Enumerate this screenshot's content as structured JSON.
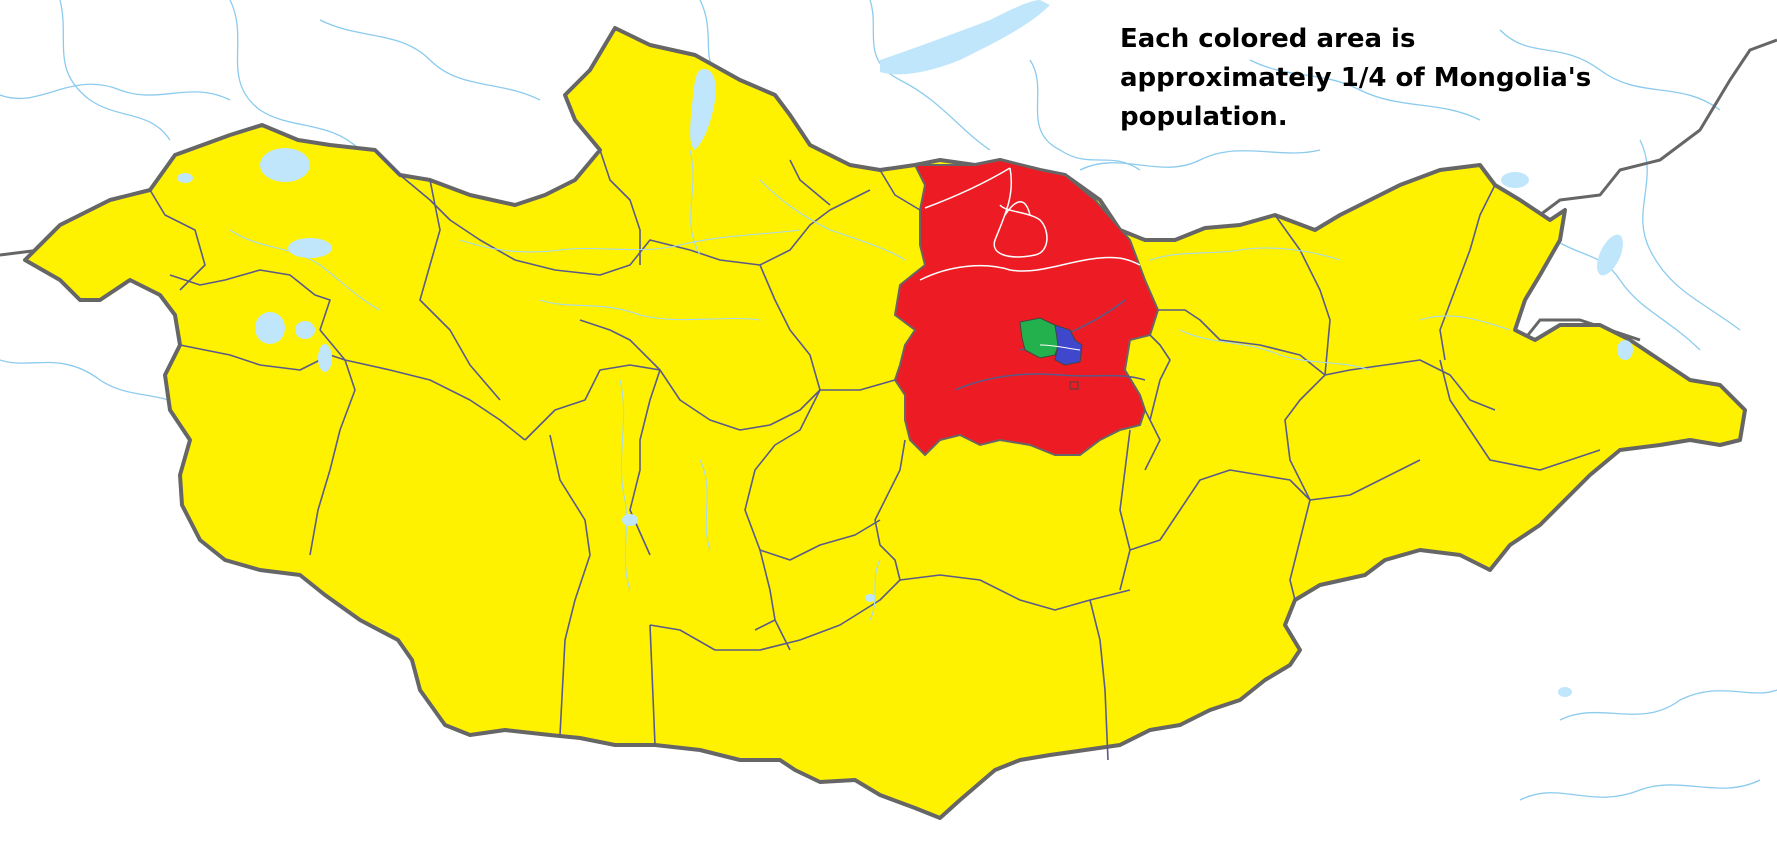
{
  "caption": {
    "lines": [
      "Each colored area is",
      "approximately 1/4 of Mongolia's",
      "population."
    ]
  },
  "population_groups": [
    {
      "name": "yellow-areas",
      "color": "#fff200",
      "share_of_population": 0.25
    },
    {
      "name": "red-areas",
      "color": "#ed1c24",
      "share_of_population": 0.25
    },
    {
      "name": "green-area",
      "color": "#22b14c",
      "share_of_population": 0.25
    },
    {
      "name": "blue-area",
      "color": "#3f48cc",
      "share_of_population": 0.25
    }
  ],
  "colors": {
    "background": "#ffffff",
    "water": "#bfe6fb",
    "river": "#8ccbee",
    "border": "#666666"
  }
}
